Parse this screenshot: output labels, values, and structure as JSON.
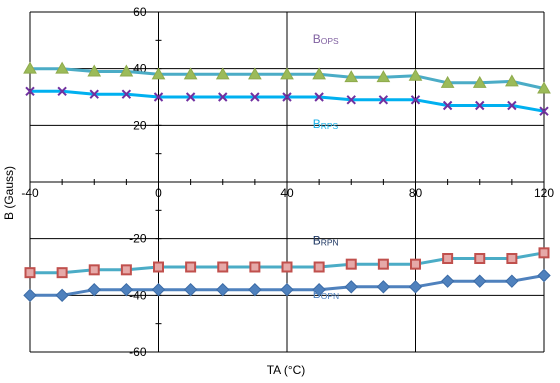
{
  "chart_data": {
    "type": "line",
    "xlabel": "TA (°C)",
    "ylabel": "B (Gauss)",
    "xlim": [
      -40,
      120
    ],
    "ylim": [
      -60,
      60
    ],
    "x_ticks": [
      -40,
      0,
      40,
      80,
      120
    ],
    "y_ticks": [
      -60,
      -40,
      -20,
      0,
      20,
      40,
      60
    ],
    "x_tick_labels": [
      "-40",
      "0",
      "40",
      "80",
      "120"
    ],
    "y_tick_labels": [
      "-60",
      "-40",
      "-20",
      "0",
      "20",
      "40",
      "60"
    ],
    "grid": true,
    "x": [
      -40,
      -30,
      -20,
      -10,
      0,
      10,
      20,
      30,
      40,
      50,
      60,
      70,
      80,
      90,
      100,
      110,
      120
    ],
    "series": [
      {
        "values": [
          40,
          40,
          39,
          39,
          38,
          38,
          38,
          38,
          38,
          38,
          37,
          37,
          37.5,
          35,
          35,
          35.5,
          33
        ],
        "color": "#4bacc6",
        "marker": "triangle",
        "marker_color": "#9bbb59"
      },
      {
        "values": [
          32,
          32,
          31,
          31,
          30,
          30,
          30,
          30,
          30,
          30,
          29,
          29,
          29,
          27,
          27,
          27,
          25
        ],
        "color": "#00b0f0",
        "marker": "x",
        "marker_color": "#7030a0"
      },
      {
        "values": [
          -32,
          -32,
          -31,
          -31,
          -30,
          -30,
          -30,
          -30,
          -30,
          -30,
          -29,
          -29,
          -29,
          -27,
          -27,
          -27,
          -25
        ],
        "color": "#4bacc6",
        "marker": "square",
        "marker_color": "#c0504d"
      },
      {
        "values": [
          -40,
          -40,
          -38,
          -38,
          -38,
          -38,
          -38,
          -38,
          -38,
          -38,
          -37,
          -37,
          -37,
          -35,
          -35,
          -35,
          -33
        ],
        "color": "#4f81bd",
        "marker": "diamond",
        "marker_color": "#4f81bd"
      }
    ],
    "annotations": [
      {
        "main": "B",
        "sub": "OPS",
        "color": "#7f5fa0",
        "x": 48,
        "y": 49
      },
      {
        "main": "B",
        "sub": "RPS",
        "color": "#1cb2e8",
        "x": 48,
        "y": 19
      },
      {
        "main": "B",
        "sub": "RPN",
        "color": "#1f3864",
        "x": 48,
        "y": -22
      },
      {
        "main": "B",
        "sub": "OPN",
        "color": "#4f81bd",
        "x": 48,
        "y": -41
      }
    ]
  }
}
